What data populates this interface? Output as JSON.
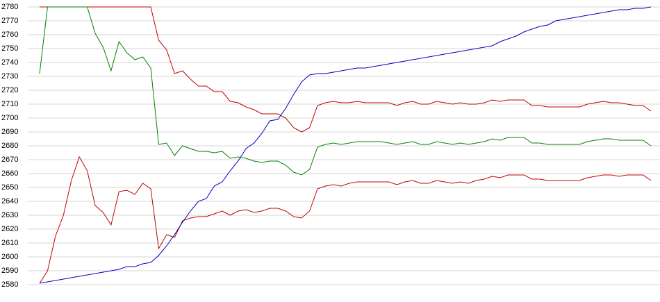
{
  "chart_data": {
    "type": "line",
    "categories": [
      null,
      null,
      null,
      null,
      null,
      null,
      null,
      null,
      null,
      null,
      null,
      null,
      null,
      null,
      null,
      null,
      null,
      null,
      null,
      null,
      null,
      null,
      null,
      null,
      null,
      null,
      null,
      null,
      null,
      null,
      null,
      null,
      null,
      null,
      null,
      null,
      null,
      null,
      null,
      null,
      null,
      null,
      null,
      null,
      null,
      null,
      null,
      null,
      null,
      null,
      null,
      null,
      null,
      null,
      null,
      null,
      null,
      null,
      null,
      null,
      null,
      null,
      null,
      null,
      null,
      null,
      null,
      null,
      null,
      null,
      null,
      null,
      null,
      null,
      null,
      null,
      null,
      null
    ],
    "ylim": [
      2580,
      2780
    ],
    "yticks": [
      2580,
      2590,
      2600,
      2610,
      2620,
      2630,
      2640,
      2650,
      2660,
      2670,
      2680,
      2690,
      2700,
      2710,
      2720,
      2730,
      2740,
      2750,
      2760,
      2770,
      2780
    ],
    "grid": true,
    "series": [
      {
        "color": "#c00000",
        "values": [
          2780,
          2780,
          2780,
          2780,
          2780,
          2780,
          2780,
          2780,
          2780,
          2780,
          2780,
          2780,
          2780,
          2780,
          2780,
          2756,
          2749,
          2732,
          2734,
          2728,
          2723,
          2723,
          2719,
          2719,
          2712,
          2711,
          2708,
          2706,
          2703,
          2703,
          2703,
          2700,
          2693,
          2690,
          2693,
          2709,
          2711,
          2712,
          2711,
          2711,
          2712,
          2711,
          2711,
          2711,
          2711,
          2709,
          2711,
          2712,
          2710,
          2710,
          2712,
          2711,
          2710,
          2711,
          2710,
          2710,
          2711,
          2713,
          2712,
          2713,
          2713,
          2713,
          2709,
          2709,
          2708,
          2708,
          2708,
          2708,
          2708,
          2710,
          2711,
          2712,
          2711,
          2711,
          2710,
          2709,
          2709,
          2705
        ]
      },
      {
        "color": "#008000",
        "values": [
          2732,
          2780,
          2780,
          2780,
          2780,
          2780,
          2780,
          2761,
          2751,
          2734,
          2755,
          2747,
          2742,
          2744,
          2736,
          2681,
          2682,
          2673,
          2680,
          2678,
          2676,
          2676,
          2675,
          2676,
          2671,
          2672,
          2671,
          2669,
          2668,
          2669,
          2669,
          2666,
          2661,
          2659,
          2663,
          2679,
          2681,
          2682,
          2681,
          2682,
          2683,
          2683,
          2683,
          2683,
          2682,
          2681,
          2682,
          2683,
          2681,
          2681,
          2683,
          2682,
          2681,
          2682,
          2681,
          2682,
          2683,
          2685,
          2684,
          2686,
          2686,
          2686,
          2682,
          2682,
          2681,
          2681,
          2681,
          2681,
          2681,
          2683,
          2684,
          2685,
          2685,
          2684,
          2684,
          2684,
          2684,
          2680
        ]
      },
      {
        "color": "#c00000",
        "values": [
          2581,
          2590,
          2615,
          2630,
          2655,
          2672,
          2662,
          2637,
          2632,
          2623,
          2647,
          2648,
          2645,
          2653,
          2649,
          2606,
          2616,
          2614,
          2626,
          2628,
          2629,
          2629,
          2631,
          2633,
          2630,
          2633,
          2634,
          2632,
          2633,
          2635,
          2635,
          2633,
          2629,
          2628,
          2633,
          2649,
          2651,
          2652,
          2651,
          2653,
          2654,
          2654,
          2654,
          2654,
          2654,
          2652,
          2654,
          2655,
          2653,
          2653,
          2655,
          2654,
          2653,
          2654,
          2653,
          2655,
          2656,
          2658,
          2657,
          2659,
          2659,
          2659,
          2656,
          2656,
          2655,
          2655,
          2655,
          2655,
          2655,
          2657,
          2658,
          2659,
          2659,
          2658,
          2659,
          2659,
          2659,
          2655
        ]
      },
      {
        "color": "#0000c0",
        "values": [
          2581,
          2582,
          2583,
          2584,
          2585,
          2586,
          2587,
          2588,
          2589,
          2590,
          2591,
          2593,
          2593,
          2595,
          2596,
          2601,
          2608,
          2616,
          2625,
          2633,
          2640,
          2642,
          2651,
          2654,
          2662,
          2669,
          2678,
          2682,
          2689,
          2698,
          2699,
          2707,
          2717,
          2726,
          2731,
          2732,
          2732,
          2733,
          2734,
          2735,
          2736,
          2736,
          2737,
          2738,
          2739,
          2740,
          2741,
          2742,
          2743,
          2744,
          2745,
          2746,
          2747,
          2748,
          2749,
          2750,
          2751,
          2752,
          2755,
          2757,
          2759,
          2762,
          2764,
          2766,
          2767,
          2770,
          2771,
          2772,
          2773,
          2774,
          2775,
          2776,
          2777,
          2778,
          2778,
          2779,
          2779,
          2780
        ]
      }
    ]
  }
}
